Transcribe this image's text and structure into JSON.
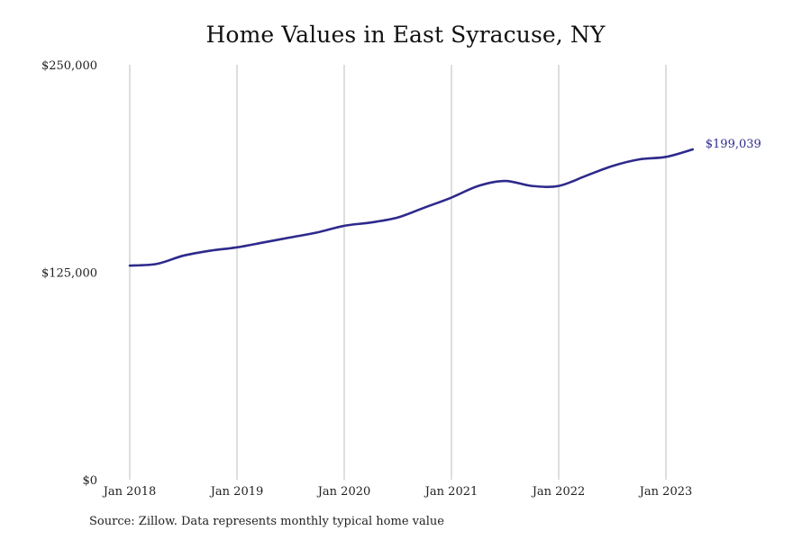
{
  "colors": {
    "line": "#2e2a8c",
    "grid": "#bdbdbd",
    "background": "#ffffff"
  },
  "source": "Source: Zillow. Data represents monthly typical home value",
  "chart_data": {
    "type": "line",
    "title": "Home Values in East Syracuse, NY",
    "xlabel": "",
    "ylabel": "",
    "ylim": [
      0,
      250000
    ],
    "yticks": [
      {
        "value": 0,
        "label": "$0"
      },
      {
        "value": 125000,
        "label": "$125,000"
      },
      {
        "value": 250000,
        "label": "$250,000"
      }
    ],
    "xticks": [
      {
        "value": "2018-01",
        "label": "Jan 2018"
      },
      {
        "value": "2019-01",
        "label": "Jan 2019"
      },
      {
        "value": "2020-01",
        "label": "Jan 2020"
      },
      {
        "value": "2021-01",
        "label": "Jan 2021"
      },
      {
        "value": "2022-01",
        "label": "Jan 2022"
      },
      {
        "value": "2023-01",
        "label": "Jan 2023"
      }
    ],
    "grid": "vertical",
    "end_label": "$199,039",
    "series": [
      {
        "x": [
          "2018-01",
          "2018-04",
          "2018-07",
          "2018-10",
          "2019-01",
          "2019-04",
          "2019-07",
          "2019-10",
          "2020-01",
          "2020-04",
          "2020-07",
          "2020-10",
          "2021-01",
          "2021-04",
          "2021-07",
          "2021-10",
          "2022-01",
          "2022-04",
          "2022-07",
          "2022-10",
          "2023-01",
          "2023-04"
        ],
        "values": [
          129000,
          130000,
          135000,
          138000,
          140000,
          143000,
          146000,
          149000,
          153000,
          155000,
          158000,
          164000,
          170000,
          177000,
          180000,
          177000,
          177000,
          183000,
          189000,
          193000,
          194500,
          199039
        ]
      }
    ]
  }
}
